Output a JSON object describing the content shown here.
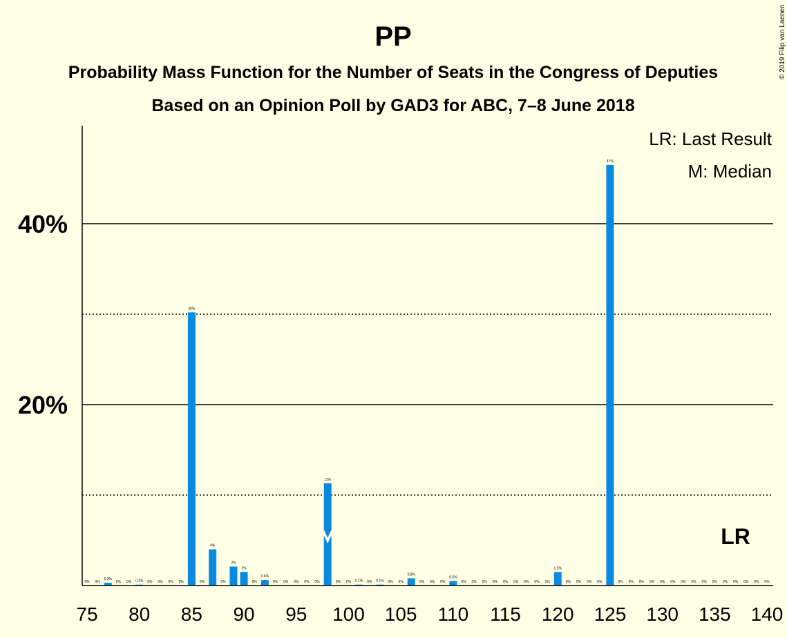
{
  "chart_data": {
    "type": "bar",
    "title": "PP",
    "subtitle": "Probability Mass Function for the Number of Seats in the Congress of Deputies",
    "subtitle2": "Based on an Opinion Poll by GAD3 for ABC, 7–8 June 2018",
    "copyright": "© 2019 Filip van Laenen",
    "legend": [
      "LR: Last Result",
      "M: Median"
    ],
    "xlim": [
      75,
      140
    ],
    "ylim": [
      0,
      50
    ],
    "x_ticks": [
      75,
      80,
      85,
      90,
      95,
      100,
      105,
      110,
      115,
      120,
      125,
      130,
      135,
      140
    ],
    "y_ticks_labeled": [
      {
        "value": 20,
        "label": "20%"
      },
      {
        "value": 40,
        "label": "40%"
      }
    ],
    "y_gridlines_solid": [
      20,
      40
    ],
    "y_gridlines_dotted": [
      10,
      30
    ],
    "bar_color": "#0a8ade",
    "median": {
      "x": 98,
      "label": "M"
    },
    "last_result": {
      "x": 137,
      "label": "LR"
    },
    "x": [
      75,
      76,
      77,
      78,
      79,
      80,
      81,
      82,
      83,
      84,
      85,
      86,
      87,
      88,
      89,
      90,
      91,
      92,
      93,
      94,
      95,
      96,
      97,
      98,
      99,
      100,
      101,
      102,
      103,
      104,
      105,
      106,
      107,
      108,
      109,
      110,
      111,
      112,
      113,
      114,
      115,
      116,
      117,
      118,
      119,
      120,
      121,
      122,
      123,
      124,
      125,
      126,
      127,
      128,
      129,
      130,
      131,
      132,
      133,
      134,
      135,
      136,
      137,
      138,
      139,
      140
    ],
    "values": [
      0,
      0,
      0.3,
      0,
      0,
      0.1,
      0,
      0,
      0,
      0,
      30.2,
      0,
      4,
      0,
      2.1,
      1.5,
      0,
      0.6,
      0,
      0,
      0,
      0,
      0,
      11.3,
      0,
      0,
      0.1,
      0,
      0.1,
      0,
      0,
      0.8,
      0,
      0,
      0,
      0.5,
      0,
      0,
      0,
      0,
      0,
      0,
      0,
      0,
      0,
      1.5,
      0,
      0,
      0,
      0,
      46.5,
      0,
      0,
      0,
      0,
      0,
      0,
      0,
      0,
      0,
      0,
      0,
      0,
      0,
      0,
      0
    ],
    "data_labels": [
      "0%",
      "0%",
      "0.3%",
      "0%",
      "0%",
      "0.1%",
      "0%",
      "0%",
      "0%",
      "0%",
      "30%",
      "0%",
      "4%",
      "0%",
      "2%",
      "2%",
      "0%",
      "0.6%",
      "0%",
      "0%",
      "0%",
      "0%",
      "0%",
      "11%",
      "0%",
      "0%",
      "0.1%",
      "0%",
      "0.1%",
      "0%",
      "0%",
      "0.8%",
      "0%",
      "0%",
      "0%",
      "0.5%",
      "0%",
      "0%",
      "0%",
      "0%",
      "0%",
      "0%",
      "0%",
      "0%",
      "0%",
      "1.5%",
      "0%",
      "0%",
      "0%",
      "0%",
      "47%",
      "0%",
      "0%",
      "0%",
      "0%",
      "0%",
      "0%",
      "0%",
      "0%",
      "0%",
      "0%",
      "0%",
      "0%",
      "0%",
      "0%",
      "0%"
    ]
  }
}
